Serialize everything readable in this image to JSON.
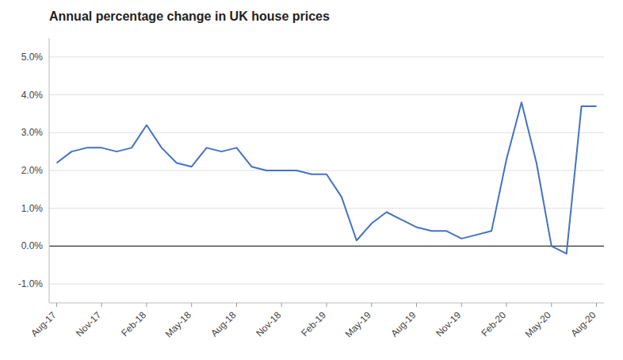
{
  "chart_data": {
    "type": "line",
    "title": "Annual percentage change in UK house prices",
    "categories": [
      "Aug-17",
      null,
      null,
      "Nov-17",
      null,
      null,
      "Feb-18",
      null,
      null,
      "May-18",
      null,
      null,
      "Aug-18",
      null,
      null,
      "Nov-18",
      null,
      null,
      "Feb-19",
      null,
      null,
      "May-19",
      null,
      null,
      "Aug-19",
      null,
      null,
      "Nov-19",
      null,
      null,
      "Feb-20",
      null,
      null,
      "May-20",
      null,
      null,
      "Aug-20"
    ],
    "values": [
      0.022,
      0.025,
      0.026,
      0.026,
      0.025,
      0.026,
      0.032,
      0.026,
      0.022,
      0.021,
      0.026,
      0.025,
      0.026,
      0.021,
      0.02,
      0.02,
      0.02,
      0.019,
      0.019,
      0.013,
      0.0015,
      0.006,
      0.009,
      0.007,
      0.005,
      0.004,
      0.004,
      0.002,
      0.003,
      0.004,
      0.023,
      0.038,
      0.022,
      0.0,
      -0.002,
      0.037,
      0.037
    ],
    "color": "#4472c4",
    "ylim": [
      -0.015,
      0.055
    ],
    "yticks": [
      {
        "value": -0.01,
        "label": "-1.0%"
      },
      {
        "value": 0.0,
        "label": "0.0%"
      },
      {
        "value": 0.01,
        "label": "1.0%"
      },
      {
        "value": 0.02,
        "label": "2.0%"
      },
      {
        "value": 0.03,
        "label": "3.0%"
      },
      {
        "value": 0.04,
        "label": "4.0%"
      },
      {
        "value": 0.05,
        "label": "5.0%"
      }
    ],
    "grid": true
  }
}
